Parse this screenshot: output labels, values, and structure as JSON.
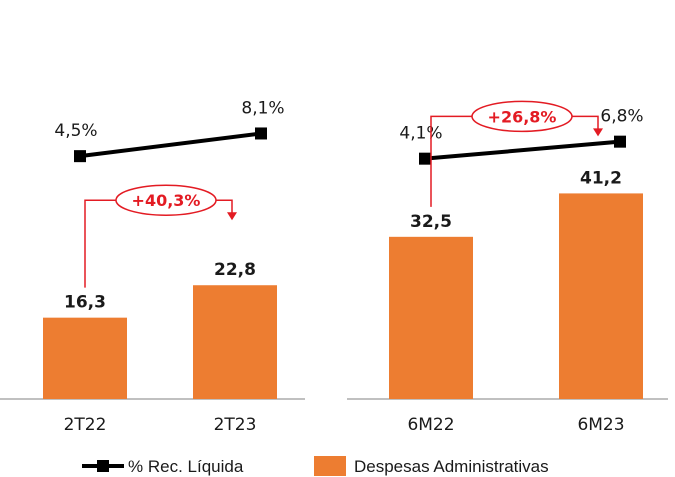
{
  "colors": {
    "bar": "#ED7D31",
    "line": "#000000",
    "growth": "#E31B23",
    "axis": "#808080"
  },
  "chart_data": [
    {
      "type": "bar",
      "categories": [
        "2T22",
        "2T23"
      ],
      "series": [
        {
          "name": "Despesas Administrativas",
          "values": [
            16.3,
            22.8
          ],
          "labels": [
            "16,3",
            "22,8"
          ]
        },
        {
          "name": "% Rec. Líquida",
          "type": "line",
          "values": [
            4.5,
            8.1
          ],
          "labels": [
            "4,5%",
            "8,1%"
          ]
        }
      ],
      "growth_label": "+40,3%",
      "bar_ylim": [
        0,
        50
      ],
      "line_ylim": [
        0,
        20
      ]
    },
    {
      "type": "bar",
      "categories": [
        "6M22",
        "6M23"
      ],
      "series": [
        {
          "name": "Despesas Administrativas",
          "values": [
            32.5,
            41.2
          ],
          "labels": [
            "32,5",
            "41,2"
          ]
        },
        {
          "name": "% Rec. Líquida",
          "type": "line",
          "values": [
            4.1,
            6.8
          ],
          "labels": [
            "4,1%",
            "6,8%"
          ]
        }
      ],
      "growth_label": "+26,8%",
      "bar_ylim": [
        0,
        50
      ],
      "line_ylim": [
        0,
        20
      ]
    }
  ],
  "legend": {
    "line_label": "% Rec. Líquida",
    "bar_label": "Despesas Administrativas",
    "position": "bottom"
  }
}
